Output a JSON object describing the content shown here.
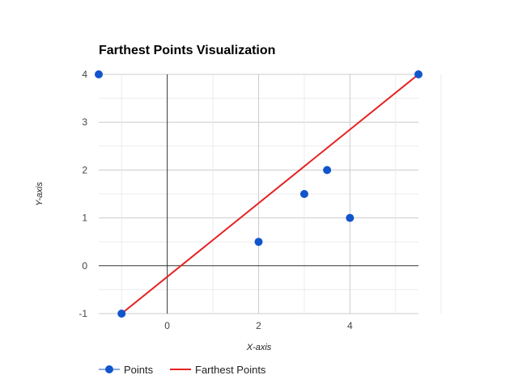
{
  "chart_data": {
    "type": "scatter",
    "title": "Farthest Points Visualization",
    "xlabel": "X-axis",
    "ylabel": "Y-axis",
    "xlim": [
      -1.5,
      5.5
    ],
    "ylim": [
      -1,
      4
    ],
    "x_ticks": [
      0,
      2,
      4
    ],
    "y_ticks": [
      -1,
      0,
      1,
      2,
      3,
      4
    ],
    "grid": true,
    "legend_position": "bottom",
    "series": [
      {
        "name": "Points",
        "kind": "scatter",
        "color": "#1155cc",
        "points": [
          {
            "x": -1.5,
            "y": 4
          },
          {
            "x": 5.5,
            "y": 4
          },
          {
            "x": 3.5,
            "y": 2
          },
          {
            "x": 3,
            "y": 1.5
          },
          {
            "x": 4,
            "y": 1
          },
          {
            "x": 2,
            "y": 0.5
          },
          {
            "x": -1,
            "y": -1
          }
        ]
      },
      {
        "name": "Farthest Points",
        "kind": "line",
        "color": "#e62222",
        "points": [
          {
            "x": -1,
            "y": -1
          },
          {
            "x": 5.5,
            "y": 4
          }
        ]
      }
    ]
  }
}
